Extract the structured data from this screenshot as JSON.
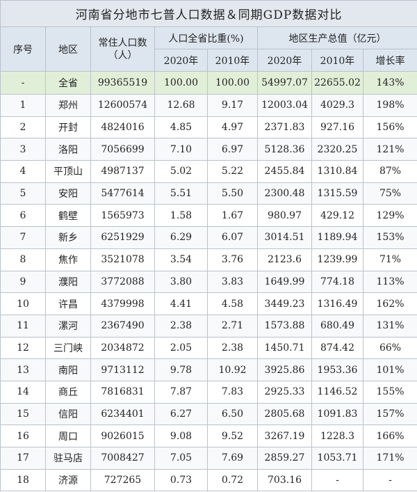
{
  "title": "河南省分地市七普人口数据＆同期GDP数据对比",
  "header": {
    "index": "序号",
    "region": "地区",
    "population": "常住人口数（人）",
    "share_group": "人口全省比重(%)",
    "gdp_group": "地区生产总值（亿元）",
    "share_2020": "2020年",
    "share_2010": "2010年",
    "gdp_2020": "2020年",
    "gdp_2010": "2010年",
    "growth": "增长率"
  },
  "rows": [
    [
      "-",
      "全省",
      "99365519",
      "100.00",
      "100.00",
      "54997.07",
      "22655.02",
      "143%"
    ],
    [
      "1",
      "郑州",
      "12600574",
      "12.68",
      "9.17",
      "12003.04",
      "4029.3",
      "198%"
    ],
    [
      "2",
      "开封",
      "4824016",
      "4.85",
      "4.97",
      "2371.83",
      "927.16",
      "156%"
    ],
    [
      "3",
      "洛阳",
      "7056699",
      "7.10",
      "6.97",
      "5128.36",
      "2320.25",
      "121%"
    ],
    [
      "4",
      "平顶山",
      "4987137",
      "5.02",
      "5.22",
      "2455.84",
      "1310.84",
      "87%"
    ],
    [
      "5",
      "安阳",
      "5477614",
      "5.51",
      "5.50",
      "2300.48",
      "1315.59",
      "75%"
    ],
    [
      "6",
      "鹤壁",
      "1565973",
      "1.58",
      "1.67",
      "980.97",
      "429.12",
      "129%"
    ],
    [
      "7",
      "新乡",
      "6251929",
      "6.29",
      "6.07",
      "3014.51",
      "1189.94",
      "153%"
    ],
    [
      "8",
      "焦作",
      "3521078",
      "3.54",
      "3.76",
      "2123.6",
      "1239.99",
      "71%"
    ],
    [
      "9",
      "濮阳",
      "3772088",
      "3.80",
      "3.83",
      "1649.99",
      "774.18",
      "113%"
    ],
    [
      "10",
      "许昌",
      "4379998",
      "4.41",
      "4.58",
      "3449.23",
      "1316.49",
      "162%"
    ],
    [
      "11",
      "漯河",
      "2367490",
      "2.38",
      "2.71",
      "1573.88",
      "680.49",
      "131%"
    ],
    [
      "12",
      "三门峡",
      "2034872",
      "2.05",
      "2.38",
      "1450.71",
      "874.42",
      "66%"
    ],
    [
      "13",
      "南阳",
      "9713112",
      "9.78",
      "10.92",
      "3925.86",
      "1953.36",
      "101%"
    ],
    [
      "14",
      "商丘",
      "7816831",
      "7.87",
      "7.83",
      "2925.33",
      "1146.52",
      "155%"
    ],
    [
      "15",
      "信阳",
      "6234401",
      "6.27",
      "6.50",
      "2805.68",
      "1091.83",
      "157%"
    ],
    [
      "16",
      "周口",
      "9026015",
      "9.08",
      "9.52",
      "3267.19",
      "1228.3",
      "166%"
    ],
    [
      "17",
      "驻马店",
      "7008427",
      "7.05",
      "7.69",
      "2859.27",
      "1053.71",
      "171%"
    ],
    [
      "18",
      "济源",
      "727265",
      "0.73",
      "0.72",
      "703.16",
      "-",
      "-"
    ]
  ]
}
